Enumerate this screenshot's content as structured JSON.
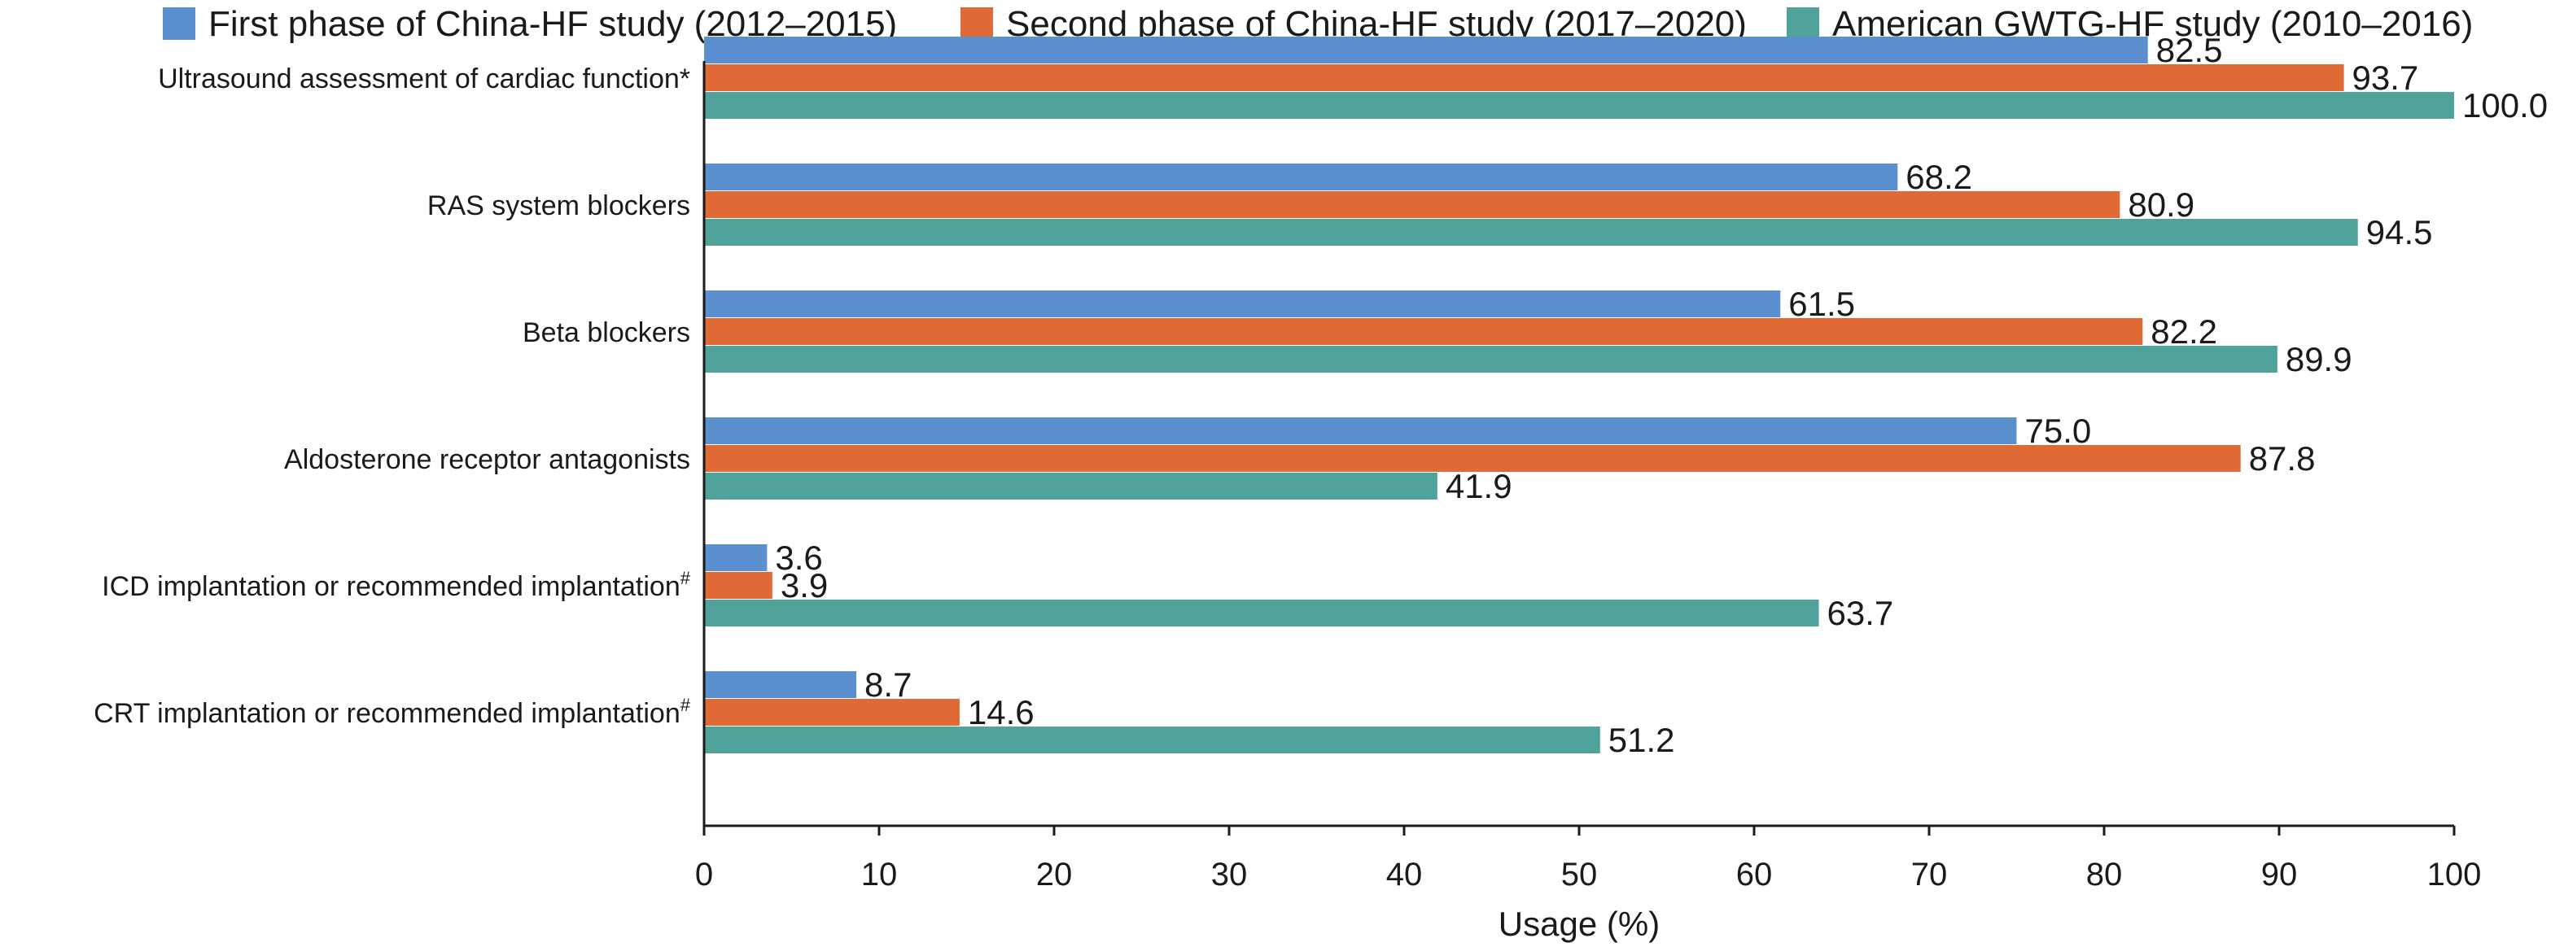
{
  "chart_data": {
    "type": "bar",
    "orientation": "horizontal",
    "categories": [
      "Ultrasound assessment of cardiac function*",
      "RAS system blockers",
      "Beta blockers",
      "Aldosterone receptor antagonists",
      "ICD implantation or recommended implantation#",
      "CRT implantation or recommended implantation#"
    ],
    "series": [
      {
        "name": "First phase of China-HF study (2012–2015)",
        "color": "#5b8fd0",
        "values": [
          82.5,
          68.2,
          61.5,
          75.0,
          3.6,
          8.7
        ]
      },
      {
        "name": "Second phase of China-HF study (2017–2020)",
        "color": "#e06a35",
        "values": [
          93.7,
          80.9,
          82.2,
          87.8,
          3.9,
          14.6
        ]
      },
      {
        "name": "American GWTG-HF study (2010–2016)",
        "color": "#4fa39a",
        "values": [
          100.0,
          94.5,
          89.9,
          41.9,
          63.7,
          51.2
        ]
      }
    ],
    "xlabel": "Usage (%)",
    "ylabel": "",
    "xlim": [
      0,
      100
    ],
    "xticks": [
      0,
      10,
      20,
      30,
      40,
      50,
      60,
      70,
      80,
      90,
      100
    ],
    "grid": false,
    "legend_position": "top",
    "data_labels": true
  }
}
